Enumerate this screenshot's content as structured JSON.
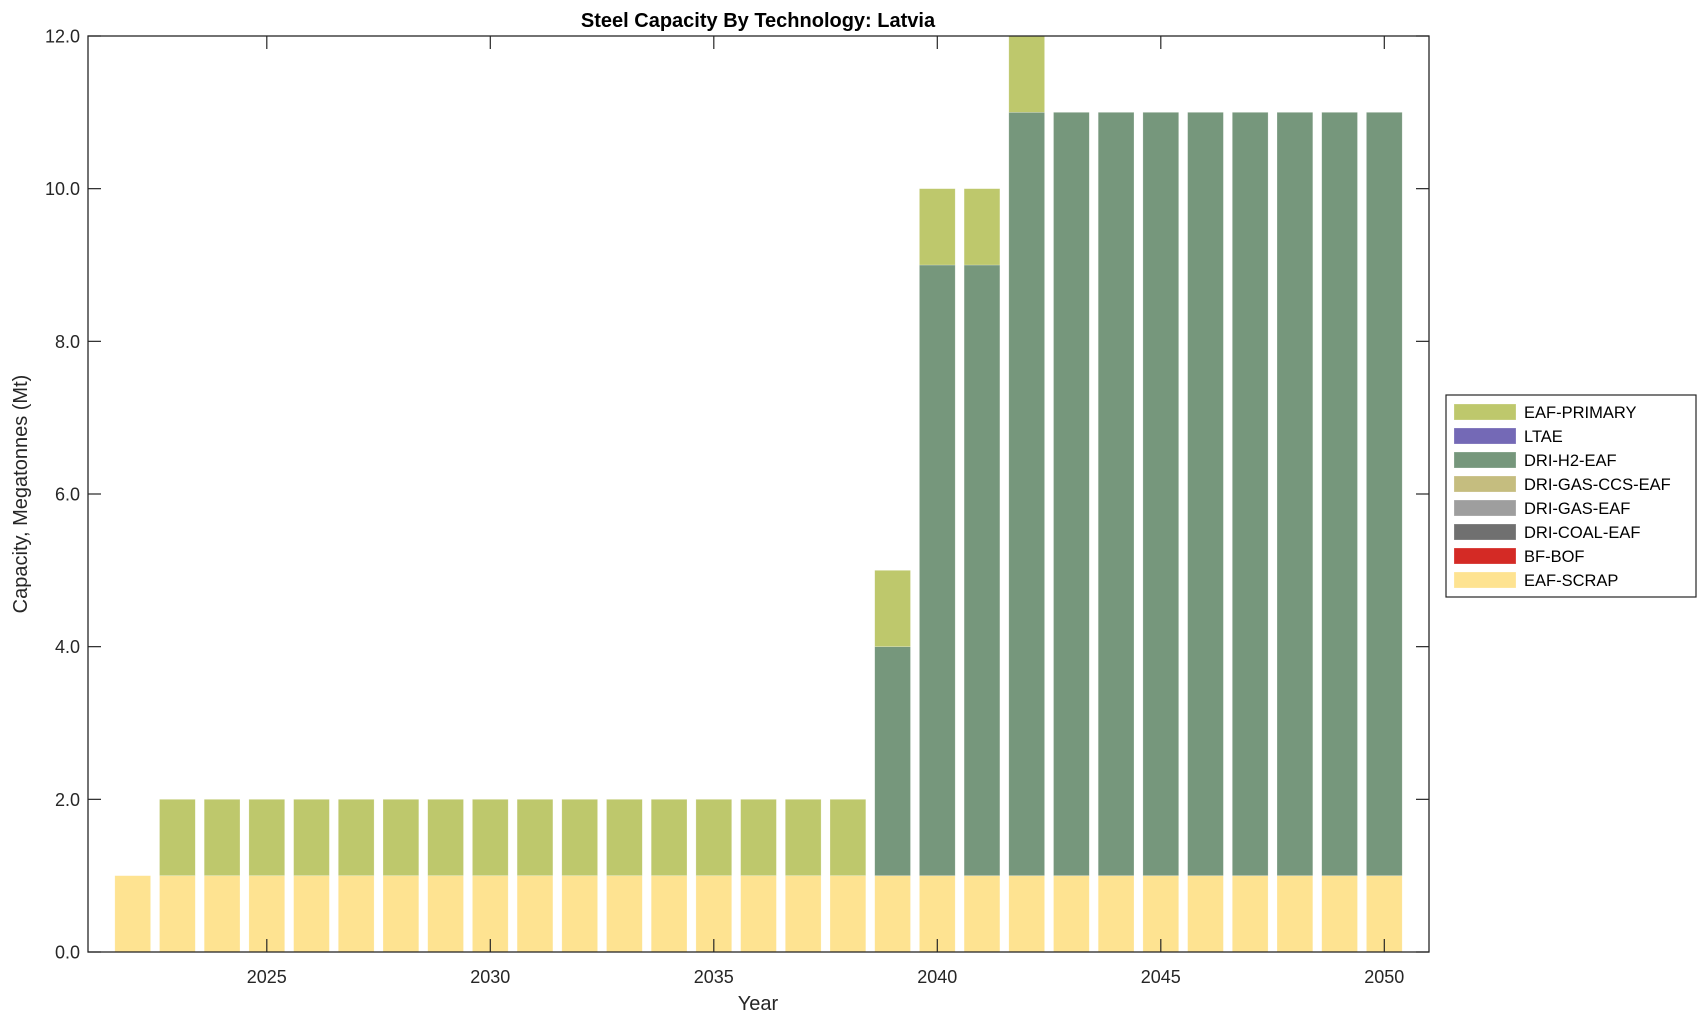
{
  "chart_data": {
    "type": "bar",
    "stacked": true,
    "title": "Steel Capacity By Technology: Latvia",
    "xlabel": "Year",
    "ylabel": "Capacity, Megatonnes (Mt)",
    "xlim": [
      2021,
      2051
    ],
    "ylim": [
      0,
      12
    ],
    "grid": false,
    "legend_position": "right-outside",
    "x": [
      2022,
      2023,
      2024,
      2025,
      2026,
      2027,
      2028,
      2029,
      2030,
      2031,
      2032,
      2033,
      2034,
      2035,
      2036,
      2037,
      2038,
      2039,
      2040,
      2041,
      2042,
      2043,
      2044,
      2045,
      2046,
      2047,
      2048,
      2049,
      2050
    ],
    "xticks": [
      2025,
      2030,
      2035,
      2040,
      2045,
      2050
    ],
    "xtick_labels": [
      "2025",
      "2030",
      "2035",
      "2040",
      "2045",
      "2050"
    ],
    "yticks": [
      0,
      2,
      4,
      6,
      8,
      10,
      12
    ],
    "ytick_labels": [
      "0.0",
      "2.0",
      "4.0",
      "6.0",
      "8.0",
      "10.0",
      "12.0"
    ],
    "series": [
      {
        "name": "EAF-SCRAP",
        "color": "#FEE391",
        "values": [
          1,
          1,
          1,
          1,
          1,
          1,
          1,
          1,
          1,
          1,
          1,
          1,
          1,
          1,
          1,
          1,
          1,
          1,
          1,
          1,
          1,
          1,
          1,
          1,
          1,
          1,
          1,
          1,
          1
        ]
      },
      {
        "name": "BF-BOF",
        "color": "#D42A25",
        "values": [
          0,
          0,
          0,
          0,
          0,
          0,
          0,
          0,
          0,
          0,
          0,
          0,
          0,
          0,
          0,
          0,
          0,
          0,
          0,
          0,
          0,
          0,
          0,
          0,
          0,
          0,
          0,
          0,
          0
        ]
      },
      {
        "name": "DRI-COAL-EAF",
        "color": "#707070",
        "values": [
          0,
          0,
          0,
          0,
          0,
          0,
          0,
          0,
          0,
          0,
          0,
          0,
          0,
          0,
          0,
          0,
          0,
          0,
          0,
          0,
          0,
          0,
          0,
          0,
          0,
          0,
          0,
          0,
          0
        ]
      },
      {
        "name": "DRI-GAS-EAF",
        "color": "#9E9E9E",
        "values": [
          0,
          0,
          0,
          0,
          0,
          0,
          0,
          0,
          0,
          0,
          0,
          0,
          0,
          0,
          0,
          0,
          0,
          0,
          0,
          0,
          0,
          0,
          0,
          0,
          0,
          0,
          0,
          0,
          0
        ]
      },
      {
        "name": "DRI-GAS-CCS-EAF",
        "color": "#C5BD7F",
        "values": [
          0,
          0,
          0,
          0,
          0,
          0,
          0,
          0,
          0,
          0,
          0,
          0,
          0,
          0,
          0,
          0,
          0,
          0,
          0,
          0,
          0,
          0,
          0,
          0,
          0,
          0,
          0,
          0,
          0
        ]
      },
      {
        "name": "DRI-H2-EAF",
        "color": "#76977C",
        "values": [
          0,
          0,
          0,
          0,
          0,
          0,
          0,
          0,
          0,
          0,
          0,
          0,
          0,
          0,
          0,
          0,
          0,
          3,
          8,
          8,
          10,
          10,
          10,
          10,
          10,
          10,
          10,
          10,
          10
        ]
      },
      {
        "name": "LTAE",
        "color": "#7469B6",
        "values": [
          0,
          0,
          0,
          0,
          0,
          0,
          0,
          0,
          0,
          0,
          0,
          0,
          0,
          0,
          0,
          0,
          0,
          0,
          0,
          0,
          0,
          0,
          0,
          0,
          0,
          0,
          0,
          0,
          0
        ]
      },
      {
        "name": "EAF-PRIMARY",
        "color": "#BEC86C",
        "values": [
          0,
          1,
          1,
          1,
          1,
          1,
          1,
          1,
          1,
          1,
          1,
          1,
          1,
          1,
          1,
          1,
          1,
          1,
          1,
          1,
          1,
          0,
          0,
          0,
          0,
          0,
          0,
          0,
          0
        ]
      }
    ],
    "legend_order": [
      "EAF-PRIMARY",
      "LTAE",
      "DRI-H2-EAF",
      "DRI-GAS-CCS-EAF",
      "DRI-GAS-EAF",
      "DRI-COAL-EAF",
      "BF-BOF",
      "EAF-SCRAP"
    ]
  }
}
